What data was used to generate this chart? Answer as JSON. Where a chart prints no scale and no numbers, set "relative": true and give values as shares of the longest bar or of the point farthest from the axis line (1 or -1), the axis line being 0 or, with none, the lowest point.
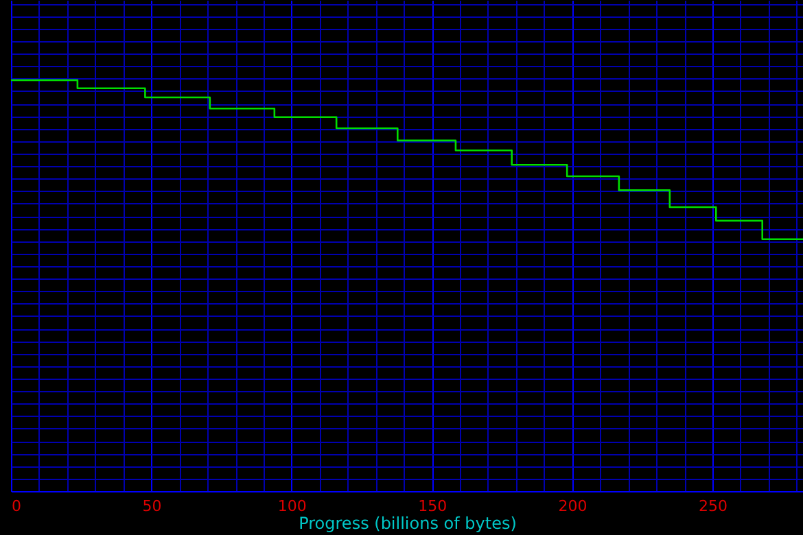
{
  "chart_data": {
    "type": "step",
    "relative": true,
    "xlabel": "Progress (billions of bytes)",
    "x": [
      0,
      23.7,
      47.8,
      70.9,
      93.9,
      116,
      137.8,
      158.5,
      178.5,
      198.2,
      216.7,
      234.8,
      251.3,
      267.8,
      282.3
    ],
    "series": [
      {
        "color": "#00dd00",
        "values": [
          1.0,
          0.98,
          0.958,
          0.931,
          0.91,
          0.883,
          0.853,
          0.829,
          0.794,
          0.766,
          0.732,
          0.691,
          0.658,
          0.613,
          0.613
        ]
      }
    ],
    "xlim": [
      0,
      282.3
    ],
    "xticks": [
      0,
      {
        "value": 10,
        "label": null
      },
      {
        "value": 20,
        "label": null
      },
      {
        "value": 30,
        "label": null
      },
      {
        "value": 40,
        "label": null
      },
      50,
      {
        "value": 60,
        "label": null
      },
      {
        "value": 70,
        "label": null
      },
      {
        "value": 80,
        "label": null
      },
      {
        "value": 90,
        "label": null
      },
      100,
      {
        "value": 110,
        "label": null
      },
      {
        "value": 120,
        "label": null
      },
      {
        "value": 130,
        "label": null
      },
      {
        "value": 140,
        "label": null
      },
      150,
      {
        "value": 160,
        "label": null
      },
      {
        "value": 170,
        "label": null
      },
      {
        "value": 180,
        "label": null
      },
      {
        "value": 190,
        "label": null
      },
      200,
      {
        "value": 210,
        "label": null
      },
      {
        "value": 220,
        "label": null
      },
      {
        "value": 230,
        "label": null
      },
      {
        "value": 240,
        "label": null
      },
      250,
      {
        "value": 260,
        "label": null
      },
      {
        "value": 270,
        "label": null
      },
      {
        "value": 280,
        "label": null
      }
    ],
    "grid": true
  }
}
